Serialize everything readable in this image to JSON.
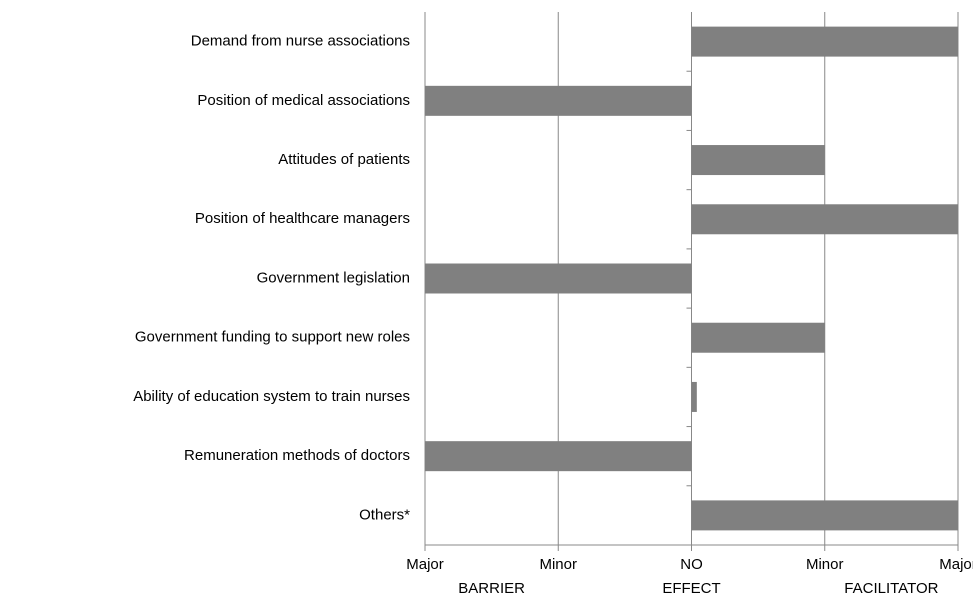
{
  "chart_data": {
    "type": "barh",
    "categories": [
      "Demand from nurse associations",
      "Position of medical associations",
      "Attitudes of patients",
      "Position of healthcare managers",
      "Government legislation",
      "Government funding to support new roles",
      "Ability of education system to train nurses",
      "Remuneration methods of doctors",
      "Others*"
    ],
    "values": [
      2,
      -2,
      1,
      2,
      -2,
      1,
      0.04,
      -2,
      2
    ],
    "color": "#808080",
    "xlim": [
      -2,
      2
    ],
    "xticks": [
      {
        "value": -2,
        "label": "Major"
      },
      {
        "value": -1,
        "label": "Minor"
      },
      {
        "value": 0,
        "label": "NO"
      },
      {
        "value": 1,
        "label": "Minor"
      },
      {
        "value": 2,
        "label": "Major"
      }
    ],
    "x_group_labels": [
      {
        "value": -1.5,
        "label": "BARRIER"
      },
      {
        "value": 0,
        "label": "EFFECT"
      },
      {
        "value": 1.5,
        "label": "FACILITATOR"
      }
    ],
    "grid": true
  }
}
